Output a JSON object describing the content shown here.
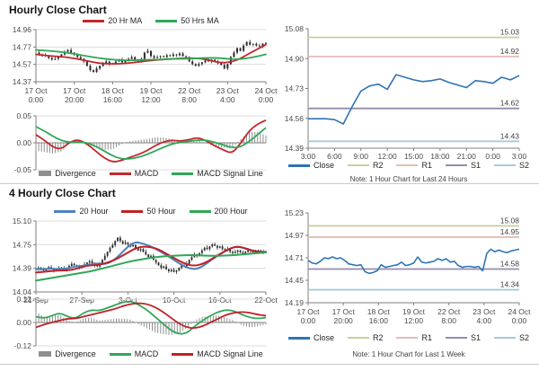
{
  "page": {
    "background": "#ffffff",
    "divider_color": "#c9c9c9"
  },
  "colors": {
    "red": "#c1272d",
    "green": "#2fa758",
    "blue_ma": "#4f81bd",
    "red_ma": "#bf2026",
    "close_blue": "#2e74b5",
    "r2": "#c9cf9b",
    "r1": "#e6bcb8",
    "s1": "#958bad",
    "s2": "#a2ccd9",
    "candle": "#2b2b2b",
    "divergence": "#8f8f8f",
    "grid": "#dcdcdc",
    "axis": "#7f7f7f",
    "tick_text": "#4a4a4a"
  },
  "chart_data": [
    {
      "id": "hourly_price",
      "type": "candlestick",
      "title": "Hourly Close Chart",
      "legend": [
        {
          "label": "20 Hr MA",
          "color": "#c1272d",
          "type": "line-bold"
        },
        {
          "label": "50 Hrs MA",
          "color": "#2fa758",
          "type": "line-bold"
        }
      ],
      "ylim": [
        14.37,
        14.96
      ],
      "yticks": [
        "14.96",
        "14.77",
        "14.57",
        "14.37"
      ],
      "xticks": [
        [
          "17 Oct",
          "0:00"
        ],
        [
          "17 Oct",
          "20:00"
        ],
        [
          "18 Oct",
          "16:00"
        ],
        [
          "19 Oct",
          "12:00"
        ],
        [
          "22 Oct",
          "8:00"
        ],
        [
          "23 Oct",
          "4:00"
        ],
        [
          "24 Oct",
          "0:00"
        ]
      ],
      "close": [
        14.7,
        14.68,
        14.66,
        14.67,
        14.64,
        14.62,
        14.63,
        14.65,
        14.68,
        14.71,
        14.73,
        14.7,
        14.68,
        14.65,
        14.63,
        14.6,
        14.55,
        14.5,
        14.48,
        14.52,
        14.55,
        14.58,
        14.6,
        14.57,
        14.58,
        14.6,
        14.62,
        14.59,
        14.61,
        14.63,
        14.65,
        14.62,
        14.6,
        14.63,
        14.7,
        14.72,
        14.66,
        14.64,
        14.65,
        14.66,
        14.65,
        14.67,
        14.66,
        14.68,
        14.67,
        14.69,
        14.66,
        14.65,
        14.6,
        14.57,
        14.55,
        14.57,
        14.59,
        14.61,
        14.6,
        14.62,
        14.6,
        14.58,
        14.56,
        14.52,
        14.57,
        14.65,
        14.7,
        14.75,
        14.72,
        14.78,
        14.82,
        14.79,
        14.8,
        14.78,
        14.77,
        14.8,
        14.81
      ],
      "series": [
        {
          "name": "20 Hr MA",
          "color": "#c1272d",
          "values": [
            14.68,
            14.66,
            14.65,
            14.62,
            14.58,
            14.57,
            14.58,
            14.6,
            14.62,
            14.63,
            14.64,
            14.63,
            14.58,
            14.6,
            14.7,
            14.79
          ]
        },
        {
          "name": "50 Hrs MA",
          "color": "#2fa758",
          "values": [
            14.73,
            14.72,
            14.7,
            14.67,
            14.64,
            14.62,
            14.61,
            14.62,
            14.62,
            14.63,
            14.63,
            14.64,
            14.64,
            14.62,
            14.64,
            14.68
          ]
        }
      ]
    },
    {
      "id": "hourly_macd",
      "type": "macd",
      "ylim": [
        -0.05,
        0.05
      ],
      "yticks": [
        "0.05",
        "0.00",
        "-0.05"
      ],
      "legend": [
        {
          "label": "Divergence",
          "color": "#8f8f8f",
          "type": "bar"
        },
        {
          "label": "MACD",
          "color": "#c1272d",
          "type": "line-bold"
        },
        {
          "label": "MACD Signal Line",
          "color": "#2fa758",
          "type": "line-bold"
        }
      ],
      "macd": {
        "color": "#c1272d",
        "values": [
          0.015,
          0.005,
          -0.008,
          -0.012,
          0.002,
          0.006,
          -0.002,
          -0.015,
          -0.028,
          -0.036,
          -0.033,
          -0.027,
          -0.022,
          -0.015,
          -0.005,
          0.002,
          0.005,
          0.003,
          0.006,
          0.01,
          0.004,
          -0.006,
          -0.013,
          -0.02,
          -0.002,
          0.022,
          0.035,
          0.042
        ]
      },
      "signal": {
        "color": "#2fa758",
        "values": [
          0.03,
          0.022,
          0.012,
          0.004,
          0.001,
          0.002,
          0.0,
          -0.006,
          -0.015,
          -0.024,
          -0.03,
          -0.03,
          -0.027,
          -0.022,
          -0.015,
          -0.008,
          -0.002,
          0.001,
          0.003,
          0.005,
          0.005,
          0.001,
          -0.004,
          -0.009,
          -0.008,
          0.002,
          0.015,
          0.028
        ]
      }
    },
    {
      "id": "hourly_sr",
      "type": "line",
      "ylim": [
        14.39,
        15.08
      ],
      "yticks": [
        "15.08",
        "14.90",
        "14.73",
        "14.56",
        "14.39"
      ],
      "xticks": [
        "3:00",
        "6:00",
        "9:00",
        "12:00",
        "15:00",
        "18:00",
        "21:00",
        "0:00",
        "3:00"
      ],
      "close": {
        "color": "#2e74b5",
        "values": [
          14.56,
          14.56,
          14.56,
          14.555,
          14.53,
          14.63,
          14.72,
          14.75,
          14.76,
          14.73,
          14.815,
          14.8,
          14.785,
          14.775,
          14.78,
          14.79,
          14.77,
          14.755,
          14.74,
          14.78,
          14.775,
          14.765,
          14.8,
          14.785,
          14.81
        ]
      },
      "levels": [
        {
          "name": "R2",
          "value": 15.03,
          "label": "15.03",
          "color": "#c9cf9b"
        },
        {
          "name": "R1",
          "value": 14.92,
          "label": "14.92",
          "color": "#e6bcb8"
        },
        {
          "name": "S1",
          "value": 14.62,
          "label": "14.62",
          "color": "#958bad"
        },
        {
          "name": "S2",
          "value": 14.43,
          "label": "14.43",
          "color": "#a2ccd9"
        }
      ],
      "legend": [
        {
          "label": "Close",
          "color": "#2e74b5",
          "type": "line-bold"
        },
        {
          "label": "R2",
          "color": "#c9cf9b",
          "type": "line"
        },
        {
          "label": "R1",
          "color": "#e6bcb8",
          "type": "line"
        },
        {
          "label": "S1",
          "color": "#958bad",
          "type": "line"
        },
        {
          "label": "S2",
          "color": "#a2ccd9",
          "type": "line"
        }
      ],
      "note": "Note: 1 Hour Chart for Last 24 Hours"
    },
    {
      "id": "fourhourly_price",
      "type": "candlestick",
      "title": "4 Hourly Close Chart",
      "legend": [
        {
          "label": "20 Hour",
          "color": "#4f81bd",
          "type": "line-bold"
        },
        {
          "label": "50 Hour",
          "color": "#bf2026",
          "type": "line-bold"
        },
        {
          "label": "200 Hour",
          "color": "#2fa758",
          "type": "line-bold"
        }
      ],
      "ylim": [
        14.04,
        15.1
      ],
      "yticks": [
        "15.10",
        "14.75",
        "14.39",
        "14.04"
      ],
      "xticks": [
        "21-Sep",
        "27-Sep",
        "3-Oct",
        "10-Oct",
        "16-Oct",
        "22-Oct"
      ],
      "close": [
        14.38,
        14.4,
        14.37,
        14.36,
        14.39,
        14.41,
        14.38,
        14.36,
        14.38,
        14.4,
        14.39,
        14.37,
        14.4,
        14.43,
        14.46,
        14.44,
        14.42,
        14.4,
        14.42,
        14.45,
        14.48,
        14.5,
        14.47,
        14.44,
        14.42,
        14.46,
        14.52,
        14.58,
        14.64,
        14.7,
        14.74,
        14.8,
        14.85,
        14.8,
        14.76,
        14.78,
        14.75,
        14.72,
        14.74,
        14.7,
        14.66,
        14.68,
        14.64,
        14.6,
        14.56,
        14.58,
        14.52,
        14.48,
        14.44,
        14.4,
        14.42,
        14.38,
        14.35,
        14.37,
        14.34,
        14.36,
        14.4,
        14.44,
        14.42,
        14.46,
        14.52,
        14.56,
        14.6,
        14.58,
        14.62,
        14.66,
        14.7,
        14.68,
        14.72,
        14.75,
        14.73,
        14.7,
        14.72,
        14.68,
        14.66,
        14.68,
        14.64,
        14.62,
        14.64,
        14.66,
        14.63,
        14.61,
        14.64,
        14.66,
        14.65,
        14.63,
        14.64,
        14.66,
        14.64,
        14.63,
        14.64
      ],
      "series": [
        {
          "name": "20 Hour",
          "color": "#4f81bd",
          "values": [
            14.38,
            14.38,
            14.39,
            14.38,
            14.39,
            14.42,
            14.43,
            14.45,
            14.47,
            14.45,
            14.5,
            14.6,
            14.72,
            14.79,
            14.76,
            14.72,
            14.66,
            14.59,
            14.52,
            14.44,
            14.39,
            14.38,
            14.44,
            14.53,
            14.6,
            14.67,
            14.72,
            14.7,
            14.66,
            14.64,
            14.64
          ]
        },
        {
          "name": "50 Hour",
          "color": "#bf2026",
          "values": [
            14.33,
            14.34,
            14.35,
            14.36,
            14.36,
            14.37,
            14.4,
            14.43,
            14.44,
            14.45,
            14.48,
            14.52,
            14.58,
            14.64,
            14.7,
            14.72,
            14.71,
            14.68,
            14.62,
            14.56,
            14.5,
            14.45,
            14.43,
            14.45,
            14.5,
            14.57,
            14.63,
            14.69,
            14.72,
            14.7,
            14.66,
            14.64,
            14.63
          ]
        },
        {
          "name": "200 Hour",
          "color": "#2fa758",
          "values": [
            14.21,
            14.23,
            14.25,
            14.27,
            14.29,
            14.31,
            14.33,
            14.35,
            14.38,
            14.41,
            14.44,
            14.47,
            14.5,
            14.52,
            14.54,
            14.56,
            14.57,
            14.58,
            14.585,
            14.59,
            14.59,
            14.585,
            14.58,
            14.58,
            14.585,
            14.59,
            14.6,
            14.61,
            14.62,
            14.63
          ]
        }
      ]
    },
    {
      "id": "fourhourly_macd",
      "type": "macd",
      "ylim": [
        -0.12,
        0.12
      ],
      "yticks": [
        "0.12",
        "0.00",
        "-0.12"
      ],
      "legend": [
        {
          "label": "Divergence",
          "color": "#8f8f8f",
          "type": "bar"
        },
        {
          "label": "MACD",
          "color": "#2fa758",
          "type": "line-bold"
        },
        {
          "label": "MACD Signal Line",
          "color": "#bf2026",
          "type": "line-bold"
        }
      ],
      "macd": {
        "color": "#2fa758",
        "values": [
          0.03,
          0.02,
          0.035,
          0.05,
          0.03,
          0.02,
          0.05,
          0.065,
          0.06,
          0.075,
          0.09,
          0.105,
          0.11,
          0.09,
          0.065,
          0.03,
          -0.005,
          -0.04,
          -0.06,
          -0.055,
          -0.02,
          0.01,
          0.035,
          0.055,
          0.065,
          0.06,
          0.04,
          0.025,
          0.02,
          0.025
        ]
      },
      "signal": {
        "color": "#bf2026",
        "values": [
          -0.025,
          -0.01,
          0.0,
          0.01,
          0.02,
          0.02,
          0.03,
          0.04,
          0.05,
          0.06,
          0.07,
          0.085,
          0.095,
          0.1,
          0.095,
          0.08,
          0.055,
          0.025,
          -0.005,
          -0.025,
          -0.03,
          -0.02,
          0.0,
          0.02,
          0.04,
          0.05,
          0.055,
          0.05,
          0.04,
          0.035
        ]
      }
    },
    {
      "id": "weekly_sr",
      "type": "line",
      "ylim": [
        14.19,
        15.23
      ],
      "yticks": [
        "15.23",
        "14.97",
        "14.71",
        "14.45",
        "14.19"
      ],
      "xticks": [
        [
          "17 Oct",
          "0:00"
        ],
        [
          "17 Oct",
          "20:00"
        ],
        [
          "18 Oct",
          "16:00"
        ],
        [
          "19 Oct",
          "12:00"
        ],
        [
          "22 Oct",
          "8:00"
        ],
        [
          "23 Oct",
          "4:00"
        ],
        [
          "24 Oct",
          "0:00"
        ]
      ],
      "close": {
        "color": "#2e74b5",
        "values": [
          14.68,
          14.65,
          14.64,
          14.67,
          14.71,
          14.7,
          14.72,
          14.7,
          14.71,
          14.68,
          14.64,
          14.63,
          14.62,
          14.63,
          14.55,
          14.53,
          14.54,
          14.56,
          14.63,
          14.6,
          14.61,
          14.62,
          14.63,
          14.66,
          14.62,
          14.63,
          14.65,
          14.72,
          14.66,
          14.65,
          14.66,
          14.67,
          14.7,
          14.68,
          14.7,
          14.66,
          14.67,
          14.62,
          14.6,
          14.61,
          14.61,
          14.6,
          14.61,
          14.56,
          14.76,
          14.81,
          14.78,
          14.8,
          14.78,
          14.77,
          14.79,
          14.8,
          14.81
        ]
      },
      "levels": [
        {
          "name": "R2",
          "value": 15.08,
          "label": "15.08",
          "color": "#c9cf9b"
        },
        {
          "name": "R1",
          "value": 14.95,
          "label": "14.95",
          "color": "#e6bcb8"
        },
        {
          "name": "S1",
          "value": 14.58,
          "label": "14.58",
          "color": "#958bad"
        },
        {
          "name": "S2",
          "value": 14.34,
          "label": "14.34",
          "color": "#a2ccd9"
        }
      ],
      "legend": [
        {
          "label": "Close",
          "color": "#2e74b5",
          "type": "line-bold"
        },
        {
          "label": "R2",
          "color": "#c9cf9b",
          "type": "line"
        },
        {
          "label": "R1",
          "color": "#e6bcb8",
          "type": "line"
        },
        {
          "label": "S1",
          "color": "#958bad",
          "type": "line"
        },
        {
          "label": "S2",
          "color": "#a2ccd9",
          "type": "line"
        }
      ],
      "note": "Note: 1 Hour Chart for Last 1 Week"
    }
  ]
}
